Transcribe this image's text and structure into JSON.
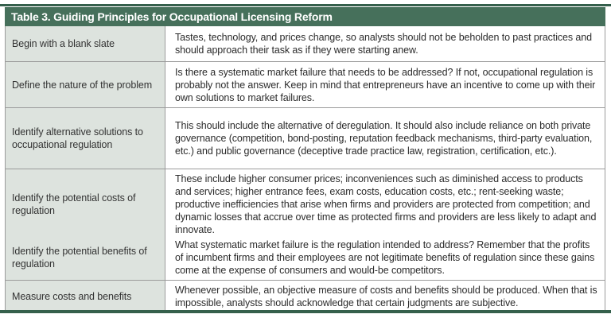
{
  "title": "Table 3. Guiding Principles for Occupational Licensing Reform",
  "rows": [
    {
      "principle": "Begin with a blank slate",
      "description": "Tastes, technology, and prices change, so analysts should not be beholden to past practices and should approach their task as if they were starting anew."
    },
    {
      "principle": "Define the nature of the problem",
      "description": "Is there a systematic market failure that needs to be addressed? If not, occupational regulation is probably not the answer. Keep in mind that entrepreneurs have an incentive to come up with their own solutions to market failures."
    },
    {
      "principle": "Identify alternative solutions to occupational regulation",
      "description": "This should include the alternative of deregulation. It should also include reliance on both private governance (competition, bond-posting, reputation feedback mechanisms, third-party evaluation, etc.) and public governance (deceptive trade practice law, registration, certification, etc.)."
    },
    {
      "principle": "Identify the potential costs of regulation",
      "description": "These include higher consumer prices; inconveniences such as diminished access to products and services; higher entrance fees, exam costs, education costs, etc.; rent-seeking waste; productive inefficiencies that arise when firms and providers are protected from competition; and dynamic losses that accrue over time as protected firms and providers are less likely to adapt and innovate."
    },
    {
      "principle": "Identify the potential benefits of regulation",
      "description": "What systematic market failure is the regulation intended to address? Remember that the profits of incumbent firms and their employees are not legitimate benefits of regulation since these gains come at the expense of consumers and would-be competitors."
    },
    {
      "principle": "Measure costs and benefits",
      "description": "Whenever possible, an objective measure of costs and benefits should be produced. When that is impossible, analysts should acknowledge that certain judgments are subjective."
    }
  ],
  "colors": {
    "header_bg": "#46705B",
    "rule_green": "#35604C",
    "label_bg": "#DDE3DE",
    "border_grey": "#9B9B9B",
    "title_text": "#FFFFFF",
    "body_text": "#2B2B2B"
  }
}
